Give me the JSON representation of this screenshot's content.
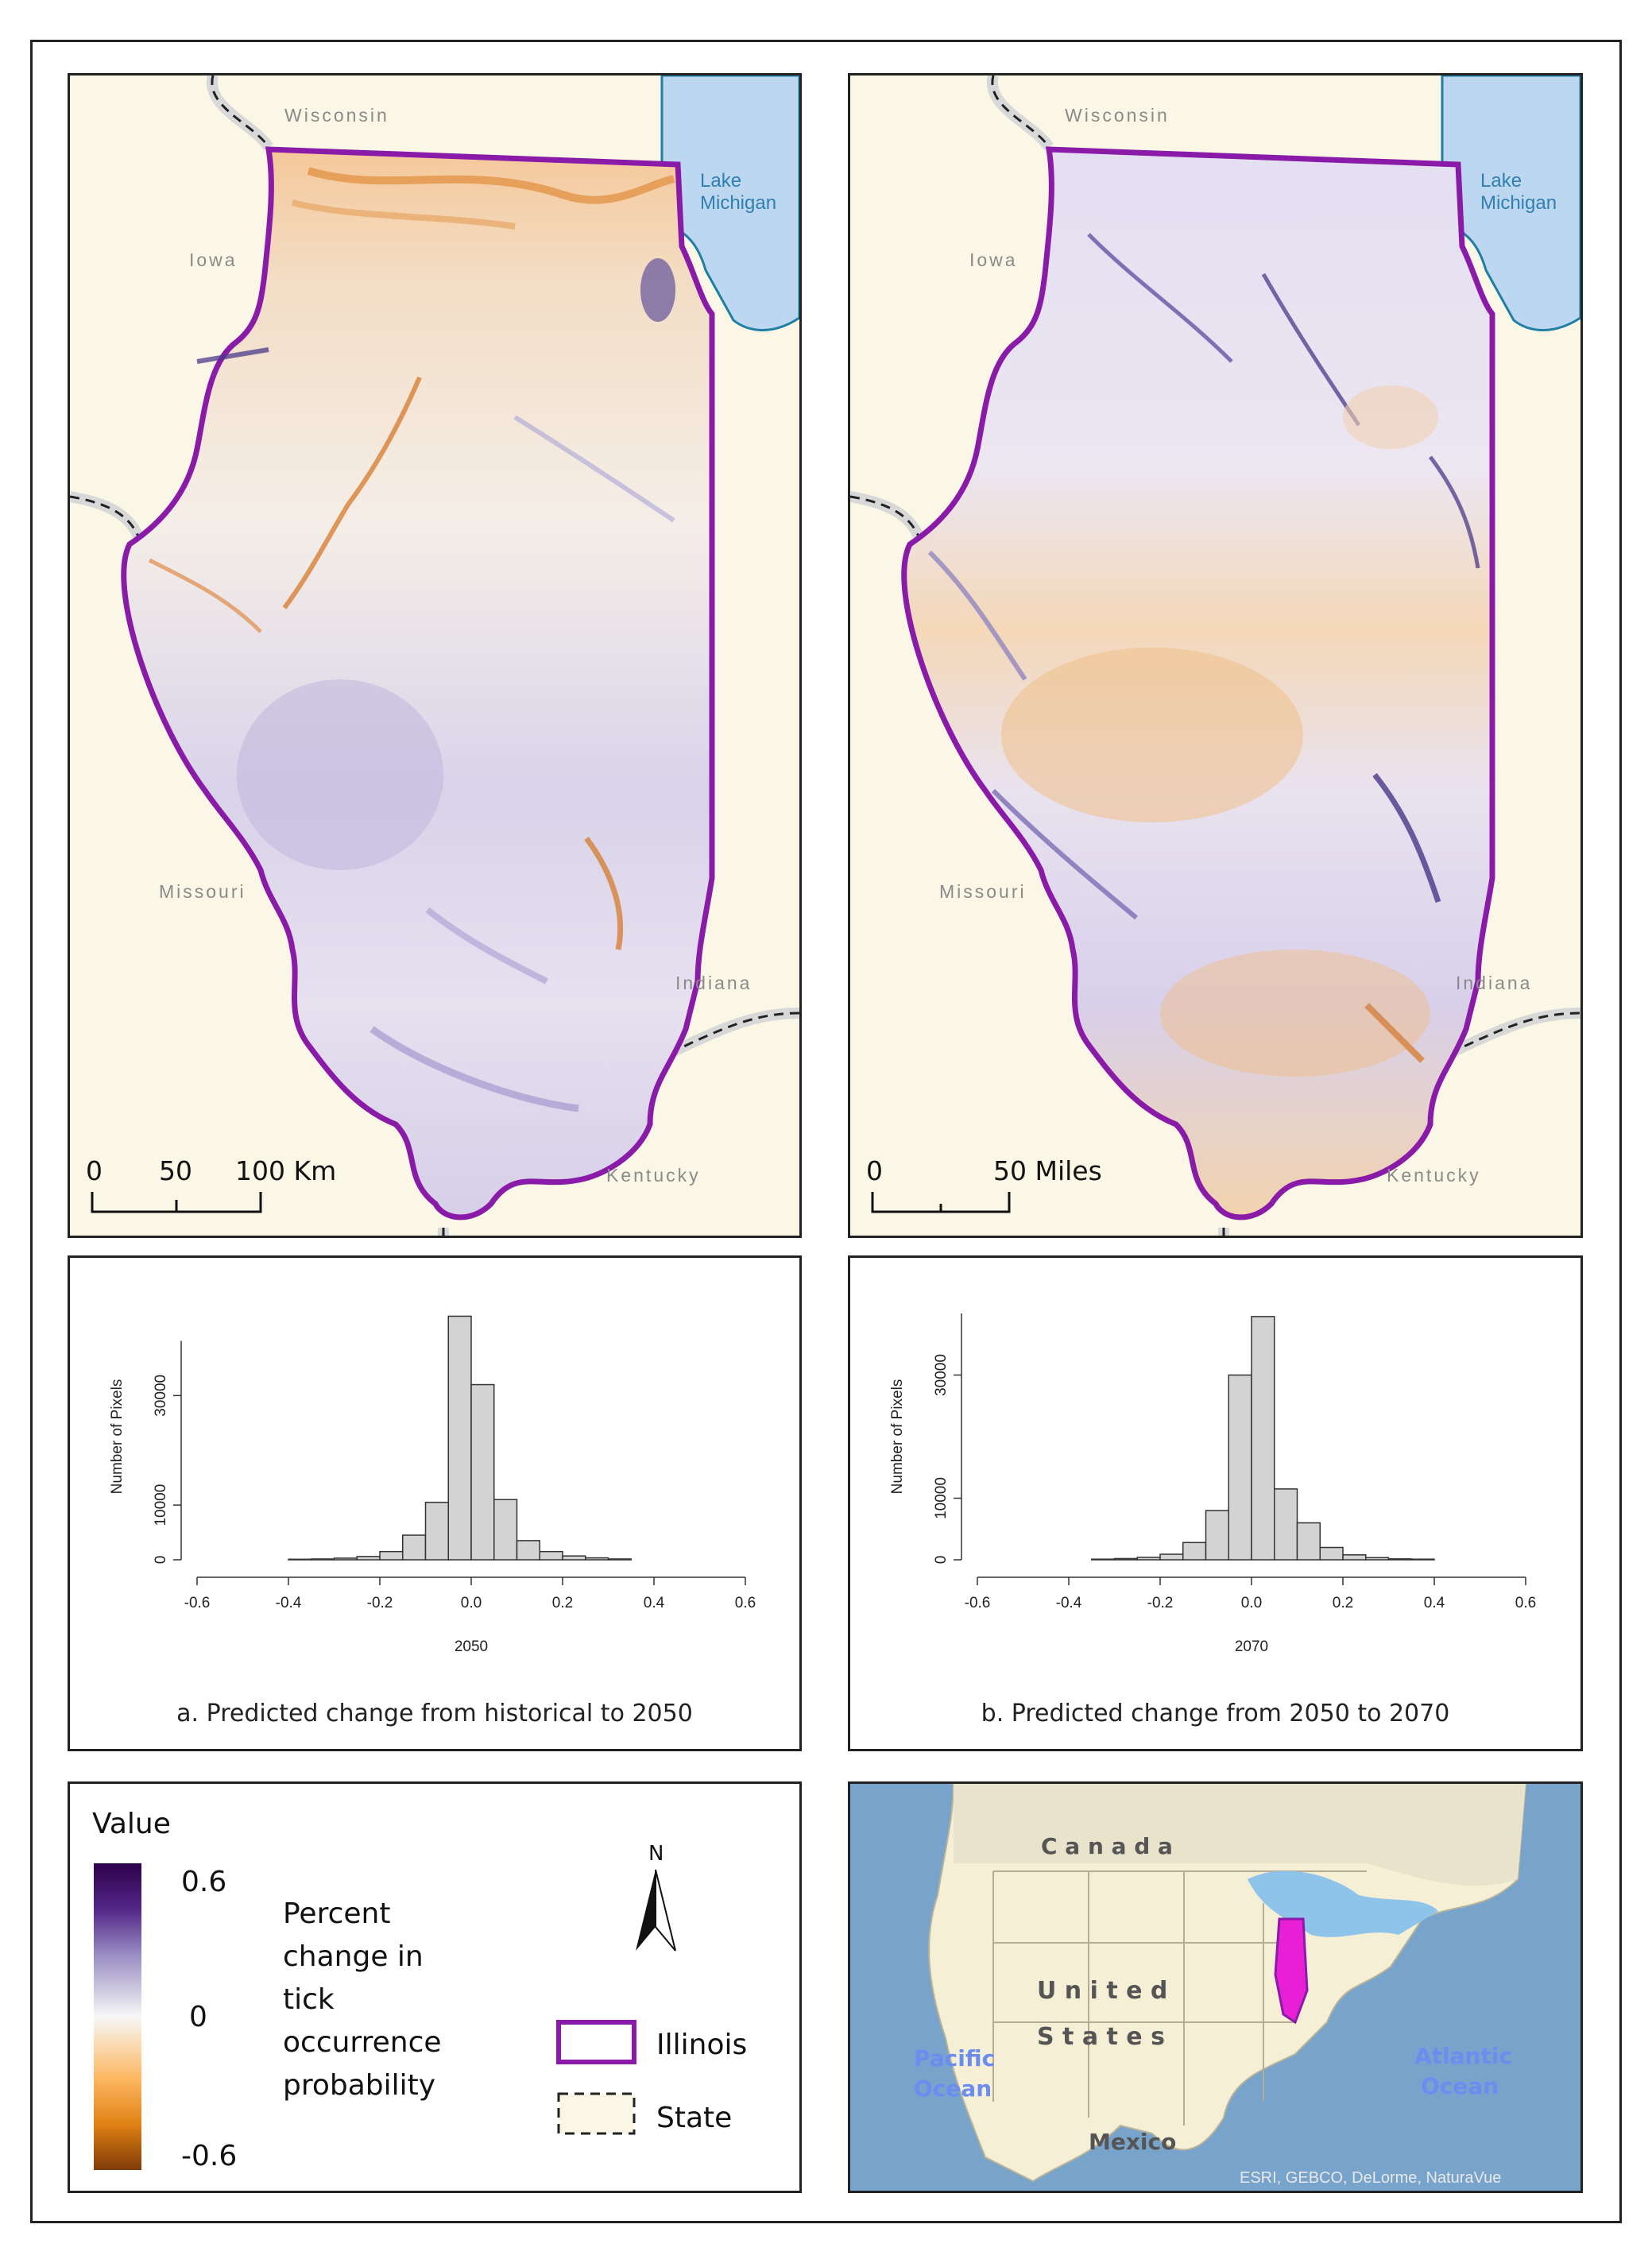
{
  "maps": {
    "a": {
      "labels": {
        "wisconsin": "Wisconsin",
        "iowa": "Iowa",
        "lake": [
          "Lake",
          "Michigan"
        ],
        "missouri": "Missouri",
        "indiana": "Indiana",
        "kentucky": "Kentucky"
      },
      "scale": {
        "t0": "0",
        "t1": "50",
        "t2": "100 Km"
      }
    },
    "b": {
      "labels": {
        "wisconsin": "Wisconsin",
        "iowa": "Iowa",
        "lake": [
          "Lake",
          "Michigan"
        ],
        "missouri": "Missouri",
        "indiana": "Indiana",
        "kentucky": "Kentucky"
      },
      "scale": {
        "t0": "0",
        "t1": "50 Miles"
      }
    }
  },
  "chart_data": [
    {
      "type": "bar",
      "title": "",
      "xlabel": "2050",
      "ylabel": "Number of Pixels",
      "xlim": [
        -0.6,
        0.6
      ],
      "xticks": [
        "-0.6",
        "-0.4",
        "-0.2",
        "0.0",
        "0.2",
        "0.4",
        "0.6"
      ],
      "yticks": [
        "0",
        "10000",
        "30000"
      ],
      "ylim": [
        0,
        45000
      ],
      "bin_edges": [
        -0.4,
        -0.35,
        -0.3,
        -0.25,
        -0.2,
        -0.15,
        -0.1,
        -0.05,
        0,
        0.05,
        0.1,
        0.15,
        0.2,
        0.25,
        0.3,
        0.35
      ],
      "values": [
        100,
        150,
        300,
        600,
        1500,
        4500,
        10500,
        44500,
        32000,
        11000,
        3500,
        1500,
        700,
        350,
        150
      ],
      "caption": "a. Predicted change from historical to 2050"
    },
    {
      "type": "bar",
      "title": "",
      "xlabel": "2070",
      "ylabel": "Number of Pixels",
      "xlim": [
        -0.6,
        0.6
      ],
      "xticks": [
        "-0.6",
        "-0.4",
        "-0.2",
        "0.0",
        "0.2",
        "0.4",
        "0.6"
      ],
      "yticks": [
        "0",
        "10000",
        "30000"
      ],
      "ylim": [
        0,
        40000
      ],
      "bin_edges": [
        -0.35,
        -0.3,
        -0.25,
        -0.2,
        -0.15,
        -0.1,
        -0.05,
        0,
        0.05,
        0.1,
        0.15,
        0.2,
        0.25,
        0.3,
        0.35,
        0.4
      ],
      "values": [
        100,
        200,
        400,
        900,
        2800,
        8000,
        30000,
        39500,
        11500,
        6000,
        2000,
        800,
        350,
        150,
        100
      ],
      "caption": "b. Predicted change from 2050 to 2070"
    }
  ],
  "legend": {
    "title": "Value",
    "max": "0.6",
    "mid": "0",
    "min": "-0.6",
    "description": "Percent change in tick occurrence probability",
    "north": "N",
    "illinois": "Illinois",
    "state": "State",
    "colors": {
      "high": "#2d004b",
      "mid": "#f7f7f7",
      "low": "#7f3b08",
      "illinois_outline": "#8a1aa8"
    }
  },
  "inset": {
    "canada": "C a n a d a",
    "us1": "U n i t e d",
    "us2": "S t a t e s",
    "pacific": [
      "Pacific",
      "Ocean"
    ],
    "atlantic": [
      "Atlantic",
      "Ocean"
    ],
    "mexico": "Mexico",
    "credit": "ESRI, GEBCO, DeLorme, NaturaVue"
  }
}
